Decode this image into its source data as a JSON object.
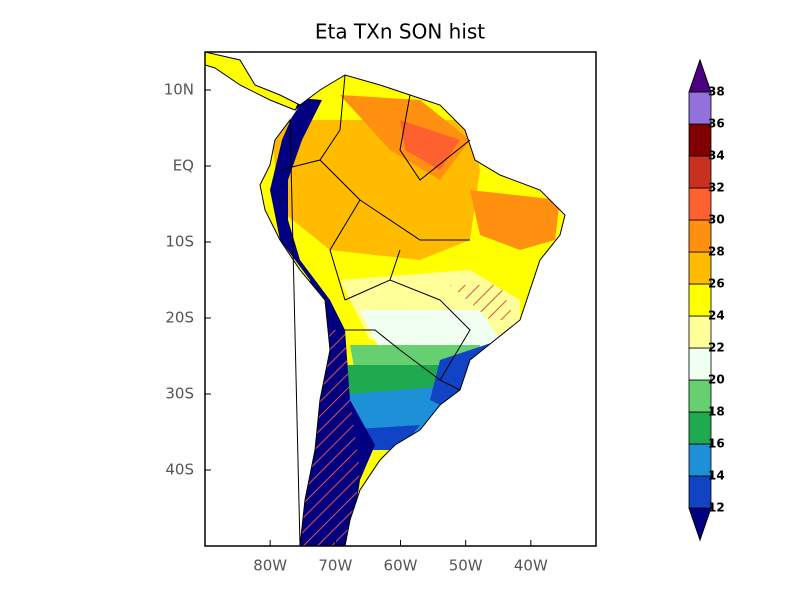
{
  "map": {
    "title": "Eta TXn SON hist",
    "lon_range": [
      -90,
      -30
    ],
    "lat_range": [
      -50,
      15
    ],
    "lon_ticks": [
      {
        "value": -80,
        "label": "80W"
      },
      {
        "value": -70,
        "label": "70W"
      },
      {
        "value": -60,
        "label": "60W"
      },
      {
        "value": -50,
        "label": "50W"
      },
      {
        "value": -40,
        "label": "40W"
      }
    ],
    "lat_ticks": [
      {
        "value": 10,
        "label": "10N"
      },
      {
        "value": 0,
        "label": "EQ"
      },
      {
        "value": -10,
        "label": "10S"
      },
      {
        "value": -20,
        "label": "20S"
      },
      {
        "value": -30,
        "label": "30S"
      },
      {
        "value": -40,
        "label": "40S"
      }
    ],
    "colorbar": {
      "levels": [
        12,
        14,
        16,
        18,
        20,
        22,
        24,
        26,
        28,
        30,
        32,
        34,
        36,
        38
      ],
      "colors": [
        "#000080",
        "#1044c4",
        "#1e90d8",
        "#20aa50",
        "#66d070",
        "#f0fff0",
        "#ffff99",
        "#ffff00",
        "#ffbb00",
        "#ff9010",
        "#ff6030",
        "#c83020",
        "#800000",
        "#9370db",
        "#4b0082"
      ]
    }
  }
}
